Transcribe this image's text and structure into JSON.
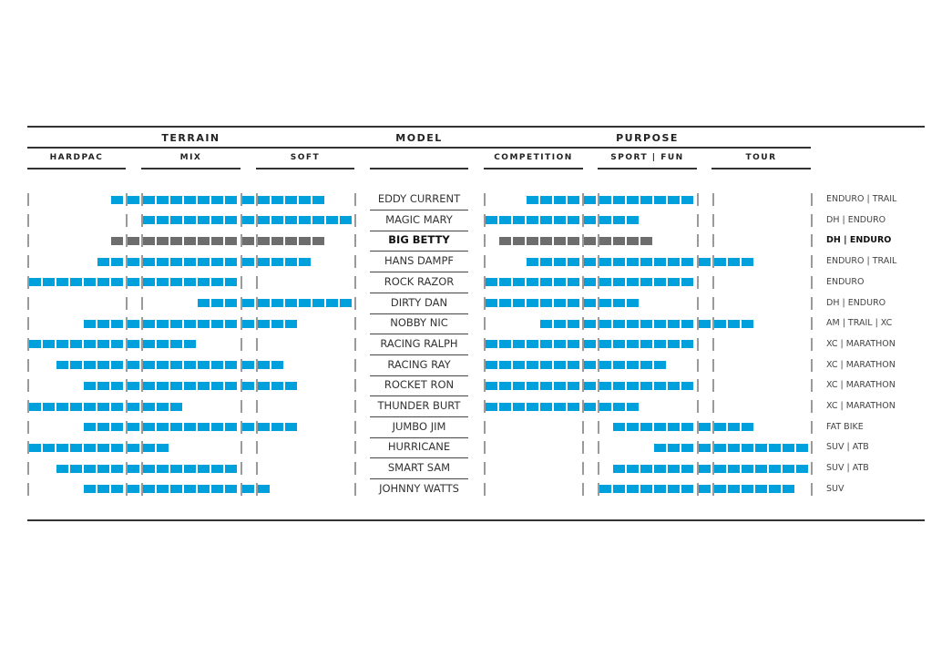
{
  "headers": {
    "terrain": "TERRAIN",
    "model": "MODEL",
    "purpose": "PURPOSE",
    "terrain_sub": [
      "HARDPAC",
      "MIX",
      "SOFT"
    ],
    "purpose_sub": [
      "COMPETITION",
      "SPORT | FUN",
      "TOUR"
    ]
  },
  "colors": {
    "bar": "#00a0dc",
    "highlight_bar": "#6d6d6d",
    "tick": "#9a9a9a"
  },
  "chart_data": {
    "type": "table",
    "scale_note_slots": "23 slots per section: 0-6 first range, 7 transition, 8-14 middle range, 15 transition, 16-22 last range",
    "rows": [
      {
        "model": "EDDY CURRENT",
        "terrain": [
          6,
          20
        ],
        "purpose": [
          3,
          14
        ],
        "use": "ENDURO | TRAIL"
      },
      {
        "model": "MAGIC MARY",
        "terrain": [
          8,
          22
        ],
        "purpose": [
          0,
          10
        ],
        "use": "DH | ENDURO"
      },
      {
        "model": "BIG BETTY",
        "terrain": [
          6,
          20
        ],
        "purpose": [
          1,
          11
        ],
        "use": "DH | ENDURO",
        "highlight": true
      },
      {
        "model": "HANS DAMPF",
        "terrain": [
          5,
          19
        ],
        "purpose": [
          3,
          18
        ],
        "use": "ENDURO | TRAIL"
      },
      {
        "model": "ROCK RAZOR",
        "terrain": [
          0,
          14
        ],
        "purpose": [
          0,
          14
        ],
        "use": "ENDURO"
      },
      {
        "model": "DIRTY DAN",
        "terrain": [
          12,
          22
        ],
        "purpose": [
          0,
          10
        ],
        "use": "DH | ENDURO"
      },
      {
        "model": "NOBBY NIC",
        "terrain": [
          4,
          18
        ],
        "purpose": [
          4,
          18
        ],
        "use": "AM | TRAIL | XC"
      },
      {
        "model": "RACING RALPH",
        "terrain": [
          0,
          11
        ],
        "purpose": [
          0,
          14
        ],
        "use": "XC | MARATHON"
      },
      {
        "model": "RACING RAY",
        "terrain": [
          2,
          17
        ],
        "purpose": [
          0,
          12
        ],
        "use": "XC | MARATHON"
      },
      {
        "model": "ROCKET RON",
        "terrain": [
          4,
          18
        ],
        "purpose": [
          0,
          14
        ],
        "use": "XC | MARATHON"
      },
      {
        "model": "THUNDER BURT",
        "terrain": [
          0,
          10
        ],
        "purpose": [
          0,
          10
        ],
        "use": "XC | MARATHON"
      },
      {
        "model": "JUMBO JIM",
        "terrain": [
          4,
          18
        ],
        "purpose": [
          9,
          18
        ],
        "use": "FAT BIKE"
      },
      {
        "model": "HURRICANE",
        "terrain": [
          0,
          9
        ],
        "purpose": [
          12,
          22
        ],
        "use": "SUV | ATB"
      },
      {
        "model": "SMART SAM",
        "terrain": [
          2,
          14
        ],
        "purpose": [
          9,
          22
        ],
        "use": "SUV | ATB"
      },
      {
        "model": "JOHNNY WATTS",
        "terrain": [
          4,
          16
        ],
        "purpose": [
          8,
          21
        ],
        "use": "SUV"
      }
    ]
  }
}
